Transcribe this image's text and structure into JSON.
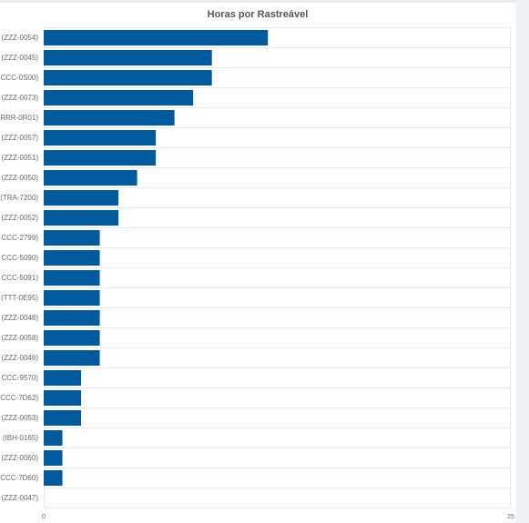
{
  "chart_data": {
    "type": "bar",
    "orientation": "horizontal",
    "title": "Horas por Rastreável",
    "xlabel": "",
    "ylabel": "",
    "categories": [
      "(ZZZ-0054)",
      "(ZZZ-0045)",
      "CCC-0S00)",
      "(ZZZ-0073)",
      "RRR-0R01)",
      "(ZZZ-0057)",
      "(ZZZ-0051)",
      "(ZZZ-0050)",
      "(TRA-7200)",
      "(ZZZ-0052)",
      "CCC-2799)",
      "CCC-5090)",
      "CCC-5091)",
      "(TTT-0E95)",
      "(ZZZ-0048)",
      "(ZZZ-0058)",
      "(ZZZ-0046)",
      "CCC-9570)",
      "CCC-7D62)",
      "(ZZZ-0053)",
      "(IBH-0165)",
      "(ZZZ-0060)",
      "CCC-7D60)",
      "(ZZZ-0047)"
    ],
    "values": [
      12,
      9,
      9,
      8,
      7,
      6,
      6,
      5,
      4,
      4,
      3,
      3,
      3,
      3,
      3,
      3,
      3,
      2,
      2,
      2,
      1,
      1,
      1,
      0
    ],
    "xlim": [
      0,
      25
    ],
    "xticks": [
      "0",
      "25"
    ],
    "bar_color": "#005a9e",
    "grid": true
  }
}
